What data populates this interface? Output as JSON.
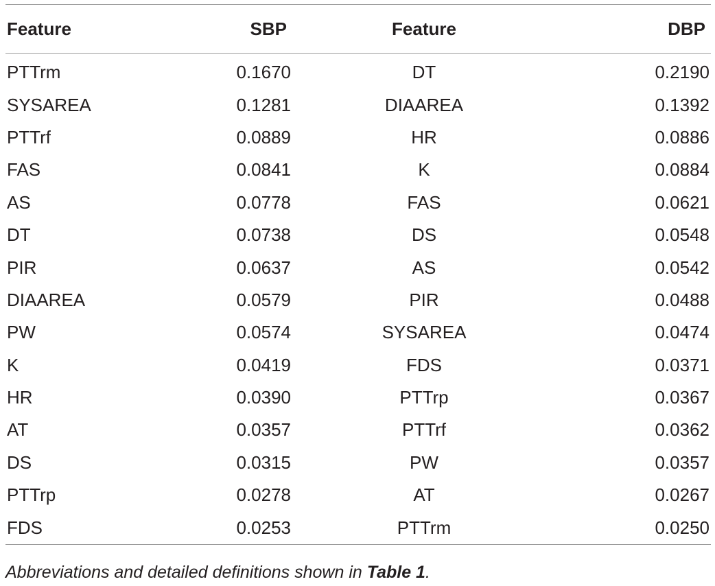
{
  "table": {
    "headers": [
      "Feature",
      "SBP",
      "Feature",
      "DBP"
    ],
    "rows": [
      [
        "PTTrm",
        "0.1670",
        "DT",
        "0.2190"
      ],
      [
        "SYSAREA",
        "0.1281",
        "DIAAREA",
        "0.1392"
      ],
      [
        "PTTrf",
        "0.0889",
        "HR",
        "0.0886"
      ],
      [
        "FAS",
        "0.0841",
        "K",
        "0.0884"
      ],
      [
        "AS",
        "0.0778",
        "FAS",
        "0.0621"
      ],
      [
        "DT",
        "0.0738",
        "DS",
        "0.0548"
      ],
      [
        "PIR",
        "0.0637",
        "AS",
        "0.0542"
      ],
      [
        "DIAAREA",
        "0.0579",
        "PIR",
        "0.0488"
      ],
      [
        "PW",
        "0.0574",
        "SYSAREA",
        "0.0474"
      ],
      [
        "K",
        "0.0419",
        "FDS",
        "0.0371"
      ],
      [
        "HR",
        "0.0390",
        "PTTrp",
        "0.0367"
      ],
      [
        "AT",
        "0.0357",
        "PTTrf",
        "0.0362"
      ],
      [
        "DS",
        "0.0315",
        "PW",
        "0.0357"
      ],
      [
        "PTTrp",
        "0.0278",
        "AT",
        "0.0267"
      ],
      [
        "FDS",
        "0.0253",
        "PTTrm",
        "0.0250"
      ]
    ]
  },
  "caption": {
    "text": "Abbreviations and detailed definitions shown in ",
    "reference": "Table 1",
    "suffix": "."
  }
}
